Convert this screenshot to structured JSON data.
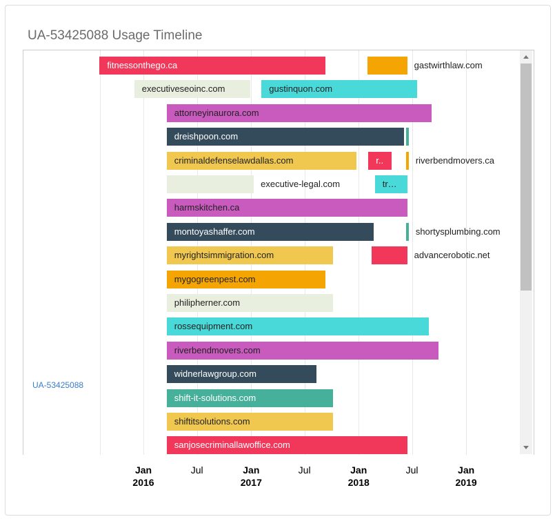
{
  "title": "UA-53425088 Usage Timeline",
  "y_label": "UA-53425088",
  "axis_ticks": [
    {
      "date": "2016-01-01",
      "line1": "Jan",
      "line2": "2016"
    },
    {
      "date": "2016-07-01",
      "line1": "Jul",
      "line2": ""
    },
    {
      "date": "2017-01-01",
      "line1": "Jan",
      "line2": "2017"
    },
    {
      "date": "2017-07-01",
      "line1": "Jul",
      "line2": ""
    },
    {
      "date": "2018-01-01",
      "line1": "Jan",
      "line2": "2018"
    },
    {
      "date": "2018-07-01",
      "line1": "Jul",
      "line2": ""
    },
    {
      "date": "2019-01-01",
      "line1": "Jan",
      "line2": "2019"
    }
  ],
  "colors": {
    "red": "#f2385a",
    "orange": "#f5a503",
    "light": "#e8efdf",
    "cyan": "#4ad9d9",
    "purple": "#c95bbf",
    "dark": "#344b5b",
    "teal": "#47b09a",
    "yellow": "#f0c850"
  },
  "rows": [
    [
      {
        "label": "fitnessonthego.ca",
        "start": "2015-08-05",
        "end": "2017-09-10",
        "color": "red"
      },
      {
        "label": "gastwirthlaw.com",
        "start": "2018-02-01",
        "end": "2018-06-15",
        "color": "orange",
        "outside": true
      }
    ],
    [
      {
        "label": "executiveseoinc.com",
        "start": "2015-12-01",
        "end": "2016-12-28",
        "color": "light"
      },
      {
        "label": "gustinquon.com",
        "start": "2017-02-05",
        "end": "2018-07-18",
        "color": "cyan"
      }
    ],
    [
      {
        "label": "attorneyinaurora.com",
        "start": "2016-03-20",
        "end": "2018-09-05",
        "color": "purple"
      }
    ],
    [
      {
        "label": "dreishpoon.com",
        "start": "2016-03-20",
        "end": "2018-06-05",
        "color": "dark"
      },
      {
        "label": "",
        "start": "2018-06-12",
        "end": "2018-06-20",
        "color": "teal"
      }
    ],
    [
      {
        "label": "criminaldefenselawdallas.com",
        "start": "2016-03-20",
        "end": "2017-12-25",
        "color": "yellow"
      },
      {
        "label": "r..",
        "start": "2018-02-03",
        "end": "2018-04-22",
        "color": "red"
      },
      {
        "label": "riverbendmovers.ca",
        "start": "2018-06-12",
        "end": "2018-06-20",
        "color": "orange",
        "outside": true
      }
    ],
    [
      {
        "label": "executive-legal.com",
        "start": "2016-03-20",
        "end": "2017-01-10",
        "color": "light",
        "outside": true
      },
      {
        "label": "tr…",
        "start": "2018-02-25",
        "end": "2018-06-15",
        "color": "cyan"
      }
    ],
    [
      {
        "label": "harmskitchen.ca",
        "start": "2016-03-20",
        "end": "2018-06-15",
        "color": "purple"
      }
    ],
    [
      {
        "label": "montoyashaffer.com",
        "start": "2016-03-20",
        "end": "2018-02-20",
        "color": "dark"
      },
      {
        "label": "shortysplumbing.com",
        "start": "2018-06-12",
        "end": "2018-06-20",
        "color": "teal",
        "outside": true
      }
    ],
    [
      {
        "label": "myrightsimmigration.com",
        "start": "2016-03-20",
        "end": "2017-10-05",
        "color": "yellow"
      },
      {
        "label": "advancerobotic.net",
        "start": "2018-02-15",
        "end": "2018-06-15",
        "color": "red",
        "outside": true
      }
    ],
    [
      {
        "label": "mygogreenpest.com",
        "start": "2016-03-20",
        "end": "2017-09-10",
        "color": "orange"
      }
    ],
    [
      {
        "label": "philipherner.com",
        "start": "2016-03-20",
        "end": "2017-10-05",
        "color": "light"
      }
    ],
    [
      {
        "label": "rossequipment.com",
        "start": "2016-03-20",
        "end": "2018-08-28",
        "color": "cyan"
      }
    ],
    [
      {
        "label": "riverbendmovers.com",
        "start": "2016-03-20",
        "end": "2018-09-30",
        "color": "purple"
      }
    ],
    [
      {
        "label": "widnerlawgroup.com",
        "start": "2016-03-20",
        "end": "2017-08-10",
        "color": "dark"
      }
    ],
    [
      {
        "label": "shift-it-solutions.com",
        "start": "2016-03-20",
        "end": "2017-10-05",
        "color": "teal"
      }
    ],
    [
      {
        "label": "shiftitsolutions.com",
        "start": "2016-03-20",
        "end": "2017-10-05",
        "color": "yellow"
      }
    ],
    [
      {
        "label": "sanjosecriminallawoffice.com",
        "start": "2016-03-20",
        "end": "2018-06-15",
        "color": "red"
      }
    ]
  ]
}
